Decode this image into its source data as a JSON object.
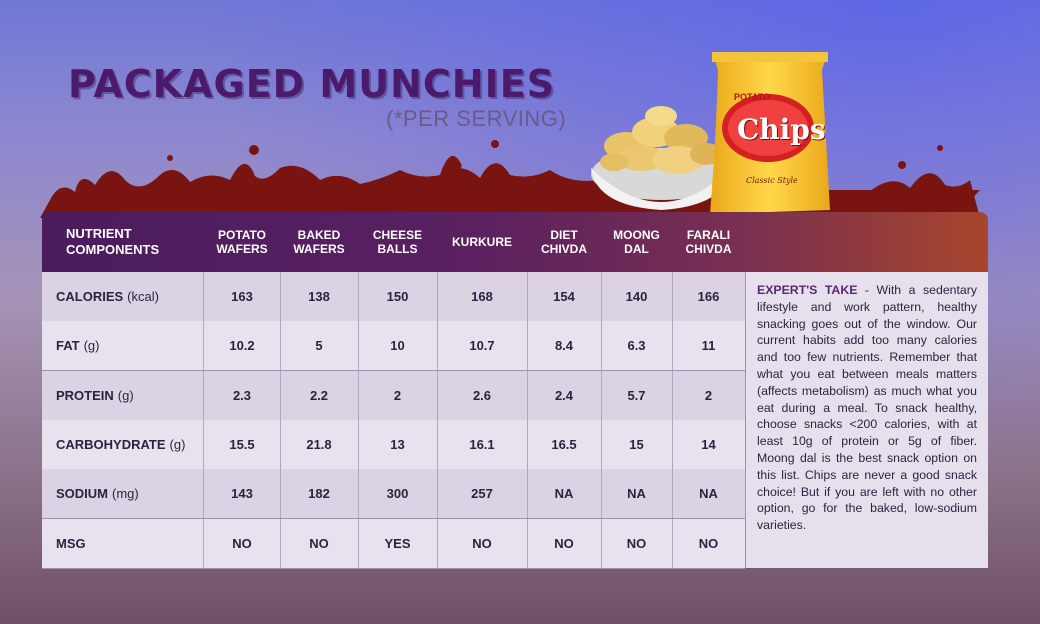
{
  "header": {
    "title": "PACKAGED MUNCHIES",
    "subtitle": "(*PER SERVING)"
  },
  "bag": {
    "brand": "POTATO",
    "name": "Chips",
    "tagline": "Classic Style"
  },
  "colors": {
    "title": "#4b1a6b",
    "header_start": "#4a1c5e",
    "header_end": "#a8452c",
    "splash": "#7a1410"
  },
  "table": {
    "first_header": [
      "NUTRIENT",
      "COMPONENTS"
    ],
    "columns": [
      [
        "POTATO",
        "WAFERS"
      ],
      [
        "BAKED",
        "WAFERS"
      ],
      [
        "CHEESE",
        "BALLS"
      ],
      [
        "KURKURE",
        ""
      ],
      [
        "DIET",
        "CHIVDA"
      ],
      [
        "MOONG",
        "DAL"
      ],
      [
        "FARALI",
        "CHIVDA"
      ]
    ],
    "rows": [
      {
        "name": "CALORIES",
        "unit": "(kcal)",
        "values": [
          "163",
          "138",
          "150",
          "168",
          "154",
          "140",
          "166"
        ]
      },
      {
        "name": "FAT",
        "unit": "(g)",
        "values": [
          "10.2",
          "5",
          "10",
          "10.7",
          "8.4",
          "6.3",
          "11"
        ]
      },
      {
        "name": "PROTEIN",
        "unit": "(g)",
        "values": [
          "2.3",
          "2.2",
          "2",
          "2.6",
          "2.4",
          "5.7",
          "2"
        ]
      },
      {
        "name": "CARBOHYDRATE",
        "unit": "(g)",
        "values": [
          "15.5",
          "21.8",
          "13",
          "16.1",
          "16.5",
          "15",
          "14"
        ]
      },
      {
        "name": "SODIUM",
        "unit": "(mg)",
        "values": [
          "143",
          "182",
          "300",
          "257",
          "NA",
          "NA",
          "NA"
        ]
      },
      {
        "name": "MSG",
        "unit": "",
        "values": [
          "NO",
          "NO",
          "YES",
          "NO",
          "NO",
          "NO",
          "NO"
        ]
      }
    ]
  },
  "expert": {
    "title": "EXPERT'S TAKE",
    "body": " - With a sedentary lifestyle and work pattern, healthy snacking goes out of the window. Our current habits add too many calories and too few nutrients. Remember that what you eat between meals matters (affects metabolism) as much what you eat during a meal. To snack healthy, choose snacks <200 calories, with at least 10g of protein or 5g of fiber. Moong dal is the best snack option on this list. Chips are never a good snack choice! But if you are left with no other option, go for the baked, low-sodium varieties."
  }
}
